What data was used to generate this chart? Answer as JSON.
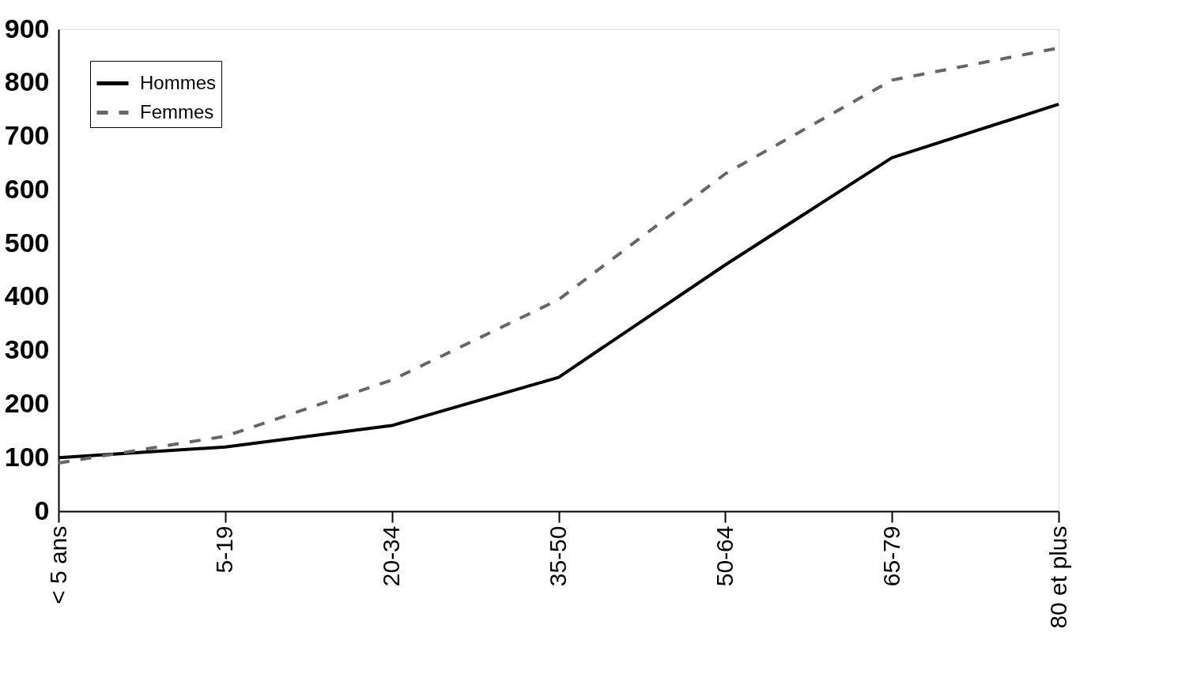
{
  "chart_data": {
    "type": "line",
    "categories": [
      "< 5 ans",
      "5-19",
      "20-34",
      "35-50",
      "50-64",
      "65-79",
      "80 et plus"
    ],
    "series": [
      {
        "name": "Hommes",
        "color": "#000000",
        "line_style": "solid",
        "values": [
          100,
          120,
          160,
          250,
          460,
          660,
          760
        ]
      },
      {
        "name": "Femmes",
        "color": "#666666",
        "line_style": "dashed",
        "values": [
          90,
          140,
          245,
          395,
          630,
          805,
          865
        ]
      }
    ],
    "ylim": [
      0,
      900
    ],
    "yticks": [
      0,
      100,
      200,
      300,
      400,
      500,
      600,
      700,
      800,
      900
    ],
    "grid": false,
    "legend": "top left",
    "marker": "none"
  }
}
